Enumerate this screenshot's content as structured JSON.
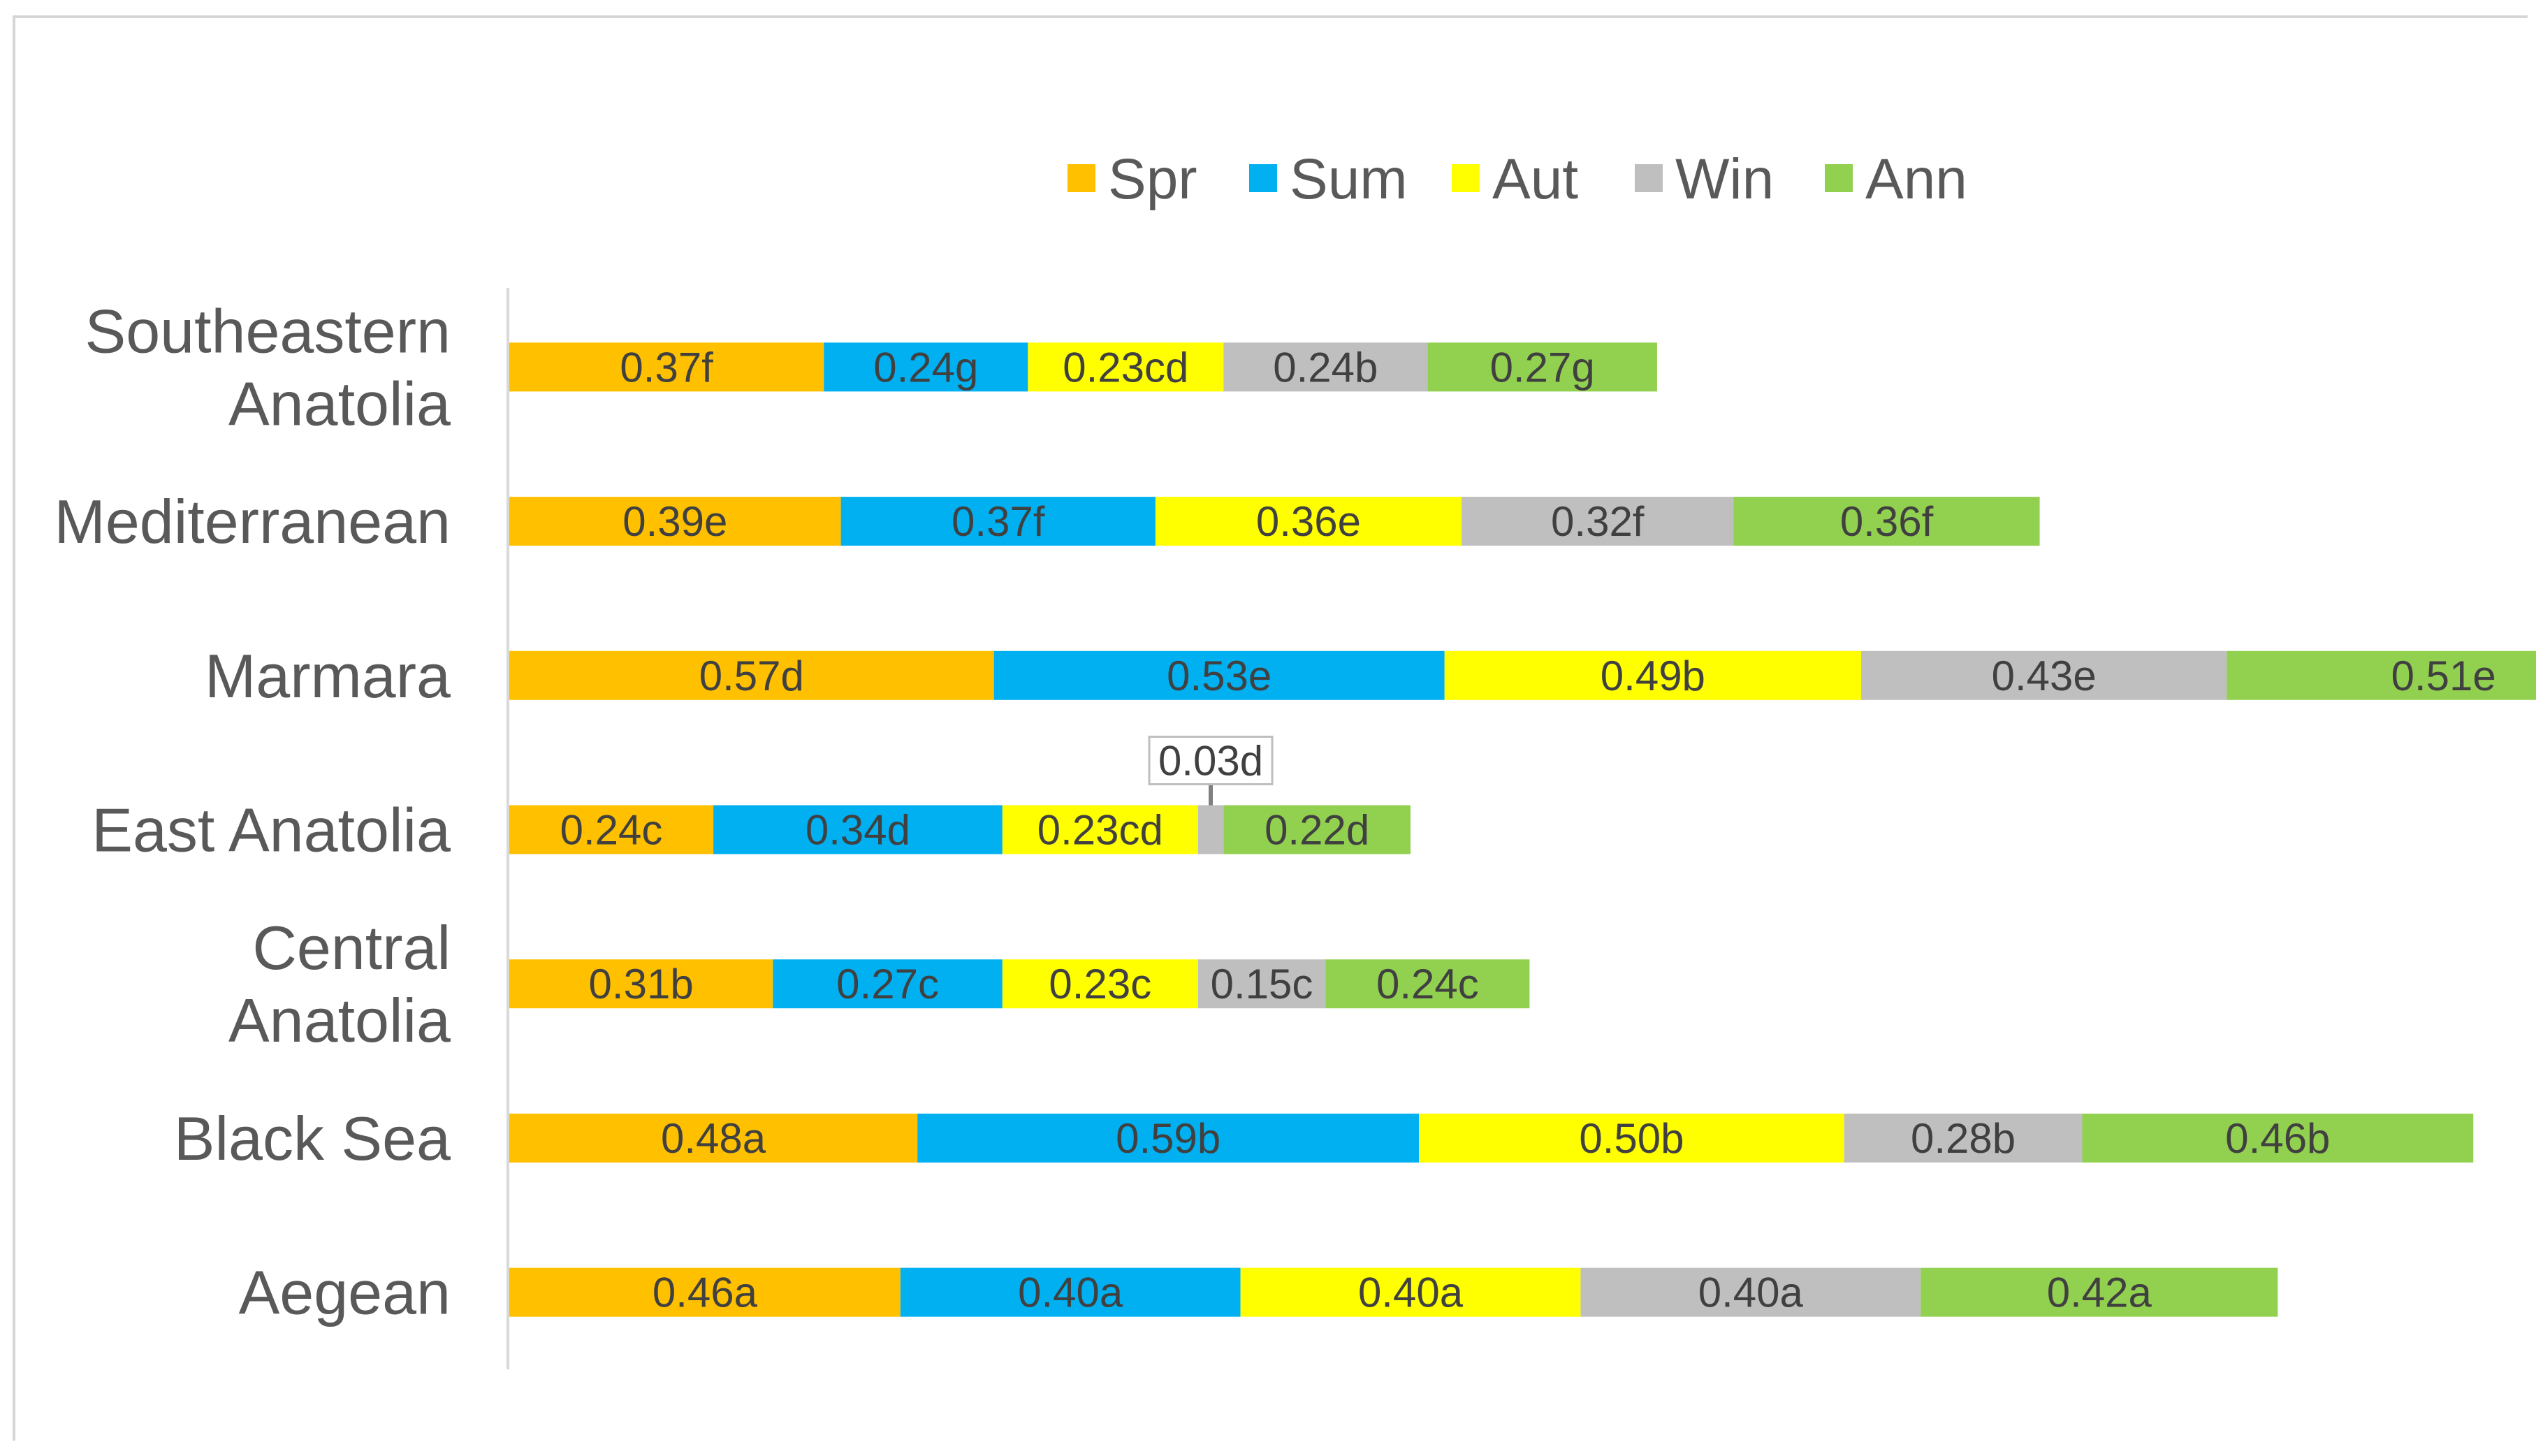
{
  "chart_data": {
    "type": "bar",
    "orientation": "horizontal",
    "stacked": true,
    "grid": false,
    "legend_position": "top",
    "categories": [
      "Aegean",
      "Black Sea",
      "Central Anatolia",
      "East Anatolia",
      "Marmara",
      "Mediterranean",
      "Southeastern Anatolia"
    ],
    "category_display": [
      [
        "Aegean"
      ],
      [
        "Black Sea"
      ],
      [
        "Central",
        "Anatolia"
      ],
      [
        "East Anatolia"
      ],
      [
        "Marmara"
      ],
      [
        "Mediterranean"
      ],
      [
        "Southeastern",
        "Anatolia"
      ]
    ],
    "series": [
      {
        "name": "Spr",
        "color": "#FFC000",
        "values": [
          0.46,
          0.48,
          0.31,
          0.24,
          0.57,
          0.39,
          0.37
        ],
        "labels": [
          "0.46a",
          "0.48a",
          "0.31b",
          "0.24c",
          "0.57d",
          "0.39e",
          "0.37f"
        ]
      },
      {
        "name": "Sum",
        "color": "#00B0F0",
        "values": [
          0.4,
          0.59,
          0.27,
          0.34,
          0.53,
          0.37,
          0.24
        ],
        "labels": [
          "0.40a",
          "0.59b",
          "0.27c",
          "0.34d",
          "0.53e",
          "0.37f",
          "0.24g"
        ]
      },
      {
        "name": "Aut",
        "color": "#FFFF00",
        "values": [
          0.4,
          0.5,
          0.23,
          0.23,
          0.49,
          0.36,
          0.23
        ],
        "labels": [
          "0.40a",
          "0.50b",
          "0.23c",
          "0.23cd",
          "0.49b",
          "0.36e",
          "0.23cd"
        ]
      },
      {
        "name": "Win",
        "color": "#BFBFBF",
        "values": [
          0.4,
          0.28,
          0.15,
          0.03,
          0.43,
          0.32,
          0.24
        ],
        "labels": [
          "0.40a",
          "0.28b",
          "0.15c",
          "0.03d",
          "0.43e",
          "0.32f",
          "0.24b"
        ]
      },
      {
        "name": "Ann",
        "color": "#92D050",
        "values": [
          0.42,
          0.46,
          0.24,
          0.22,
          0.51,
          0.36,
          0.27
        ],
        "labels": [
          "0.42a",
          "0.46b",
          "0.24c",
          "0.22d",
          "0.51e",
          "0.36f",
          "0.27g"
        ]
      }
    ],
    "xlim": [
      0,
      2.6
    ]
  }
}
